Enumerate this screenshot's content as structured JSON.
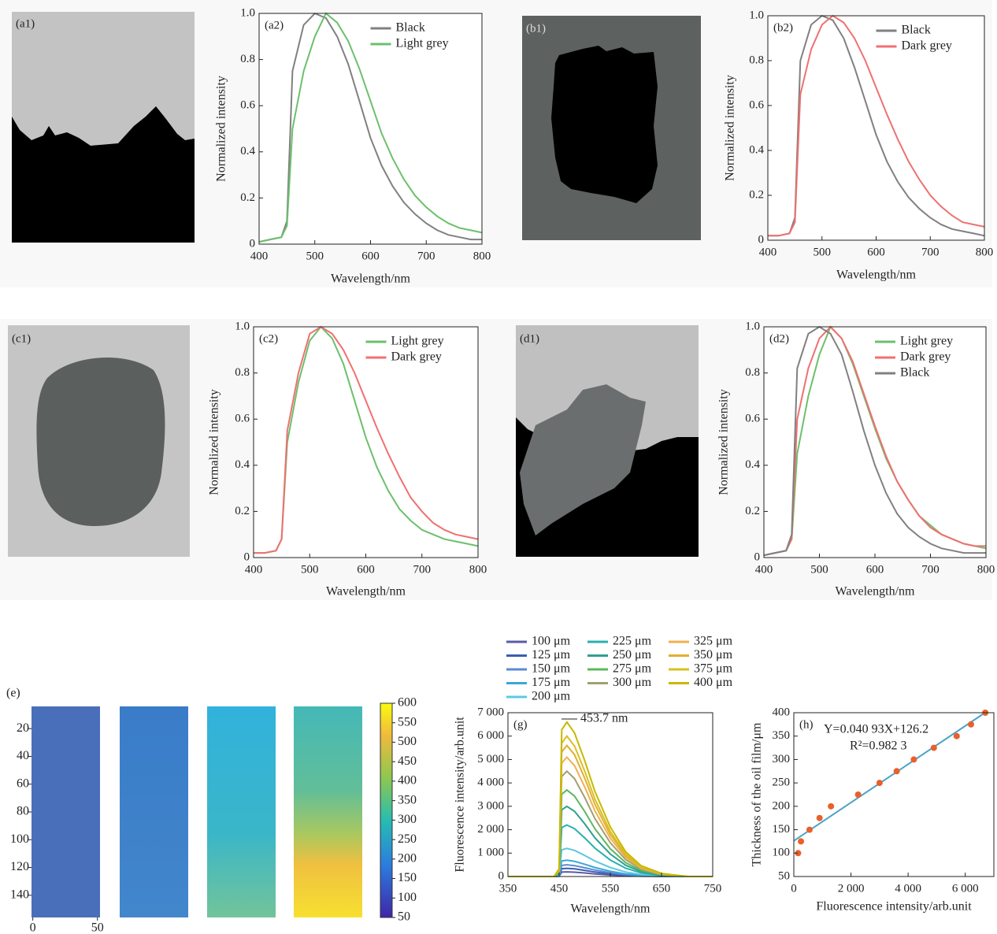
{
  "chart_data": [
    {
      "type": "image",
      "label": "(a1)"
    },
    {
      "type": "line",
      "label": "(a2)",
      "xlabel": "Wavelength/nm",
      "ylabel": "Normalized  intensity",
      "legend": "upper right",
      "xlim": [
        400,
        800
      ],
      "ylim": [
        0,
        1
      ],
      "xticks": [
        400,
        500,
        600,
        700,
        800
      ],
      "yticks": [
        0,
        0.2,
        0.4,
        0.6,
        0.8,
        {
          "value": 1,
          "label": "1.0"
        }
      ],
      "x": [
        400,
        420,
        440,
        450,
        460,
        480,
        500,
        520,
        540,
        560,
        580,
        600,
        620,
        640,
        660,
        680,
        700,
        720,
        740,
        760,
        780,
        800
      ],
      "series": [
        {
          "name": "Black",
          "color": "#808080",
          "values": [
            0.01,
            0.02,
            0.03,
            0.1,
            0.75,
            0.95,
            1.0,
            0.98,
            0.9,
            0.78,
            0.62,
            0.46,
            0.34,
            0.25,
            0.18,
            0.13,
            0.09,
            0.06,
            0.04,
            0.03,
            0.02,
            0.02
          ]
        },
        {
          "name": "Light grey",
          "color": "#6cc06c",
          "values": [
            0.01,
            0.02,
            0.03,
            0.08,
            0.5,
            0.75,
            0.9,
            1.0,
            0.96,
            0.88,
            0.76,
            0.62,
            0.48,
            0.37,
            0.28,
            0.21,
            0.16,
            0.12,
            0.09,
            0.07,
            0.06,
            0.05
          ]
        }
      ]
    },
    {
      "type": "image",
      "label": "(b1)"
    },
    {
      "type": "line",
      "label": "(b2)",
      "xlabel": "Wavelength/nm",
      "ylabel": "Normalized  intensity",
      "legend": "upper right",
      "xlim": [
        400,
        800
      ],
      "ylim": [
        0,
        1
      ],
      "xticks": [
        400,
        500,
        600,
        700,
        800
      ],
      "yticks": [
        0,
        0.2,
        0.4,
        0.6,
        0.8,
        {
          "value": 1,
          "label": "1.0"
        }
      ],
      "x": [
        400,
        420,
        440,
        450,
        460,
        480,
        500,
        520,
        540,
        560,
        580,
        600,
        620,
        640,
        660,
        680,
        700,
        720,
        740,
        760,
        780,
        800
      ],
      "series": [
        {
          "name": "Black",
          "color": "#808080",
          "values": [
            0.02,
            0.02,
            0.03,
            0.1,
            0.8,
            0.96,
            1.0,
            0.98,
            0.9,
            0.77,
            0.62,
            0.47,
            0.35,
            0.26,
            0.19,
            0.14,
            0.1,
            0.07,
            0.05,
            0.04,
            0.03,
            0.02
          ]
        },
        {
          "name": "Dark grey",
          "color": "#f07070",
          "values": [
            0.02,
            0.02,
            0.03,
            0.08,
            0.65,
            0.85,
            0.96,
            1.0,
            0.97,
            0.9,
            0.8,
            0.68,
            0.56,
            0.45,
            0.35,
            0.27,
            0.2,
            0.15,
            0.11,
            0.08,
            0.07,
            0.06
          ]
        }
      ]
    },
    {
      "type": "image",
      "label": "(c1)"
    },
    {
      "type": "line",
      "label": "(c2)",
      "xlabel": "Wavelength/nm",
      "ylabel": "Normalized  intensity",
      "legend": "upper right",
      "xlim": [
        400,
        800
      ],
      "ylim": [
        0,
        1
      ],
      "xticks": [
        400,
        500,
        600,
        700,
        800
      ],
      "yticks": [
        0,
        0.2,
        0.4,
        0.6,
        0.8,
        {
          "value": 1,
          "label": "1.0"
        }
      ],
      "x": [
        400,
        420,
        440,
        450,
        460,
        480,
        500,
        520,
        540,
        560,
        580,
        600,
        620,
        640,
        660,
        680,
        700,
        720,
        740,
        760,
        780,
        800
      ],
      "series": [
        {
          "name": "Light grey",
          "color": "#6cc06c",
          "values": [
            0.02,
            0.02,
            0.03,
            0.08,
            0.5,
            0.76,
            0.94,
            1.0,
            0.95,
            0.84,
            0.68,
            0.52,
            0.39,
            0.29,
            0.21,
            0.16,
            0.12,
            0.1,
            0.08,
            0.07,
            0.06,
            0.05
          ]
        },
        {
          "name": "Dark grey",
          "color": "#f07070",
          "values": [
            0.02,
            0.02,
            0.03,
            0.08,
            0.55,
            0.8,
            0.97,
            1.0,
            0.97,
            0.9,
            0.8,
            0.68,
            0.56,
            0.45,
            0.35,
            0.26,
            0.2,
            0.15,
            0.12,
            0.1,
            0.09,
            0.08
          ]
        }
      ]
    },
    {
      "type": "image",
      "label": "(d1)"
    },
    {
      "type": "line",
      "label": "(d2)",
      "xlabel": "Wavelength/nm",
      "ylabel": "Normalized  intensity",
      "legend": "upper right",
      "xlim": [
        400,
        800
      ],
      "ylim": [
        0,
        1
      ],
      "xticks": [
        400,
        500,
        600,
        700,
        800
      ],
      "yticks": [
        0,
        0.2,
        0.4,
        0.6,
        0.8,
        {
          "value": 1,
          "label": "1.0"
        }
      ],
      "x": [
        400,
        420,
        440,
        450,
        460,
        480,
        500,
        520,
        540,
        560,
        580,
        600,
        620,
        640,
        660,
        680,
        700,
        720,
        740,
        760,
        780,
        800
      ],
      "series": [
        {
          "name": "Light grey",
          "color": "#6cc06c",
          "values": [
            0.01,
            0.02,
            0.03,
            0.08,
            0.45,
            0.7,
            0.88,
            1.0,
            0.95,
            0.84,
            0.7,
            0.56,
            0.43,
            0.33,
            0.25,
            0.18,
            0.14,
            0.1,
            0.08,
            0.06,
            0.05,
            0.04
          ]
        },
        {
          "name": "Dark grey",
          "color": "#f07070",
          "values": [
            0.01,
            0.02,
            0.03,
            0.08,
            0.6,
            0.82,
            0.95,
            1.0,
            0.95,
            0.85,
            0.71,
            0.57,
            0.44,
            0.33,
            0.25,
            0.18,
            0.13,
            0.1,
            0.08,
            0.06,
            0.05,
            0.05
          ]
        },
        {
          "name": "Black",
          "color": "#808080",
          "values": [
            0.01,
            0.02,
            0.03,
            0.1,
            0.82,
            0.97,
            1.0,
            0.97,
            0.88,
            0.72,
            0.55,
            0.4,
            0.28,
            0.19,
            0.13,
            0.09,
            0.06,
            0.04,
            0.03,
            0.02,
            0.02,
            0.02
          ]
        }
      ]
    },
    {
      "type": "heatmap",
      "label": "(e)",
      "xlim": [
        -1,
        52
      ],
      "ylim": [
        4,
        156
      ],
      "xticks": [
        0,
        50
      ],
      "yticks": [
        20,
        40,
        60,
        80,
        100,
        120,
        140
      ],
      "clim": [
        50,
        600
      ],
      "cticks": [
        50,
        100,
        150,
        200,
        250,
        300,
        350,
        400,
        450,
        500,
        550,
        600
      ]
    },
    {
      "type": "line",
      "label": "(g)",
      "xlabel": "Wavelength/nm",
      "ylabel": "Fluorescence intensity/arb.unit",
      "legend": "above",
      "annotation": "453.7 nm",
      "xlim": [
        350,
        750
      ],
      "ylim": [
        0,
        7000
      ],
      "xticks": [
        350,
        450,
        550,
        650,
        750
      ],
      "yticks": [
        0,
        {
          "value": 1000,
          "label": "1 000"
        },
        {
          "value": 2000,
          "label": "2 000"
        },
        {
          "value": 3000,
          "label": "3 000"
        },
        {
          "value": 4000,
          "label": "4 000"
        },
        {
          "value": 5000,
          "label": "5 000"
        },
        {
          "value": 6000,
          "label": "6 000"
        },
        {
          "value": 7000,
          "label": "7 000"
        }
      ],
      "x": [
        350,
        440,
        450,
        455,
        465,
        480,
        500,
        520,
        550,
        580,
        610,
        650,
        700,
        750
      ],
      "series": [
        {
          "name": "100 μm",
          "color": "#5a5aa8",
          "values": [
            0,
            0,
            10,
            190,
            200,
            186,
            150,
            110,
            64,
            32,
            14,
            4,
            0,
            0
          ]
        },
        {
          "name": "125 μm",
          "color": "#3a5fb0",
          "values": [
            0,
            0,
            18,
            333,
            350,
            326,
            263,
            193,
            112,
            56,
            25,
            7,
            0,
            0
          ]
        },
        {
          "name": "150 μm",
          "color": "#5b8ad0",
          "values": [
            0,
            0,
            25,
            475,
            500,
            465,
            375,
            275,
            160,
            80,
            35,
            10,
            0,
            0
          ]
        },
        {
          "name": "175 μm",
          "color": "#3aa6d8",
          "values": [
            0,
            0,
            35,
            665,
            700,
            651,
            525,
            385,
            224,
            112,
            49,
            14,
            0,
            0
          ]
        },
        {
          "name": "200 μm",
          "color": "#5cc8e0",
          "values": [
            0,
            0,
            60,
            1140,
            1200,
            1116,
            900,
            660,
            384,
            192,
            84,
            24,
            0,
            0
          ]
        },
        {
          "name": "225 μm",
          "color": "#2ab0b0",
          "values": [
            0,
            0,
            110,
            2090,
            2200,
            2046,
            1650,
            1210,
            704,
            352,
            154,
            44,
            0,
            0
          ]
        },
        {
          "name": "250 μm",
          "color": "#30a090",
          "values": [
            0,
            0,
            150,
            2850,
            3000,
            2790,
            2250,
            1650,
            960,
            480,
            210,
            60,
            0,
            0
          ]
        },
        {
          "name": "275 μm",
          "color": "#5cb85c",
          "values": [
            0,
            0,
            185,
            3515,
            3700,
            3441,
            2775,
            2035,
            1184,
            592,
            259,
            74,
            0,
            0
          ]
        },
        {
          "name": "300 μm",
          "color": "#a0a070",
          "values": [
            0,
            0,
            225,
            4275,
            4500,
            4185,
            3375,
            2475,
            1440,
            720,
            315,
            90,
            0,
            0
          ]
        },
        {
          "name": "325 μm",
          "color": "#f0b050",
          "values": [
            0,
            0,
            255,
            4845,
            5100,
            4743,
            3825,
            2805,
            1632,
            816,
            357,
            102,
            0,
            0
          ]
        },
        {
          "name": "350 μm",
          "color": "#e0b030",
          "values": [
            0,
            0,
            280,
            5320,
            5600,
            5208,
            4200,
            3080,
            1792,
            896,
            392,
            112,
            0,
            0
          ]
        },
        {
          "name": "375 μm",
          "color": "#d8c020",
          "values": [
            0,
            0,
            300,
            5700,
            6000,
            5580,
            4500,
            3300,
            1920,
            960,
            420,
            120,
            0,
            0
          ]
        },
        {
          "name": "400 μm",
          "color": "#c8b800",
          "values": [
            0,
            0,
            330,
            6270,
            6600,
            6138,
            4950,
            3630,
            2112,
            1056,
            462,
            132,
            0,
            0
          ]
        }
      ]
    },
    {
      "type": "scatter",
      "label": "(h)",
      "xlabel": "Fluorescence  intensity/arb.unit",
      "ylabel": "Thickness of the oil film/μm",
      "annotations": [
        "Y=0.040 93X+126.2",
        "R²=0.982 3"
      ],
      "xlim": [
        0,
        7000
      ],
      "ylim": [
        50,
        400
      ],
      "xticks": [
        0,
        {
          "value": 2000,
          "label": "2 000"
        },
        {
          "value": 4000,
          "label": "4 000"
        },
        {
          "value": 6000,
          "label": "6 000"
        }
      ],
      "yticks": [
        50,
        100,
        150,
        200,
        250,
        300,
        350,
        400
      ],
      "x": [
        150,
        250,
        550,
        900,
        1300,
        2250,
        3000,
        3600,
        4200,
        4900,
        5700,
        6200,
        6700
      ],
      "values": [
        100,
        125,
        150,
        175,
        200,
        225,
        250,
        275,
        300,
        325,
        350,
        375,
        400
      ],
      "color": "#e8602c",
      "fit": {
        "slope": 0.04093,
        "intercept": 126.2,
        "color": "#4aa3c8"
      }
    }
  ]
}
